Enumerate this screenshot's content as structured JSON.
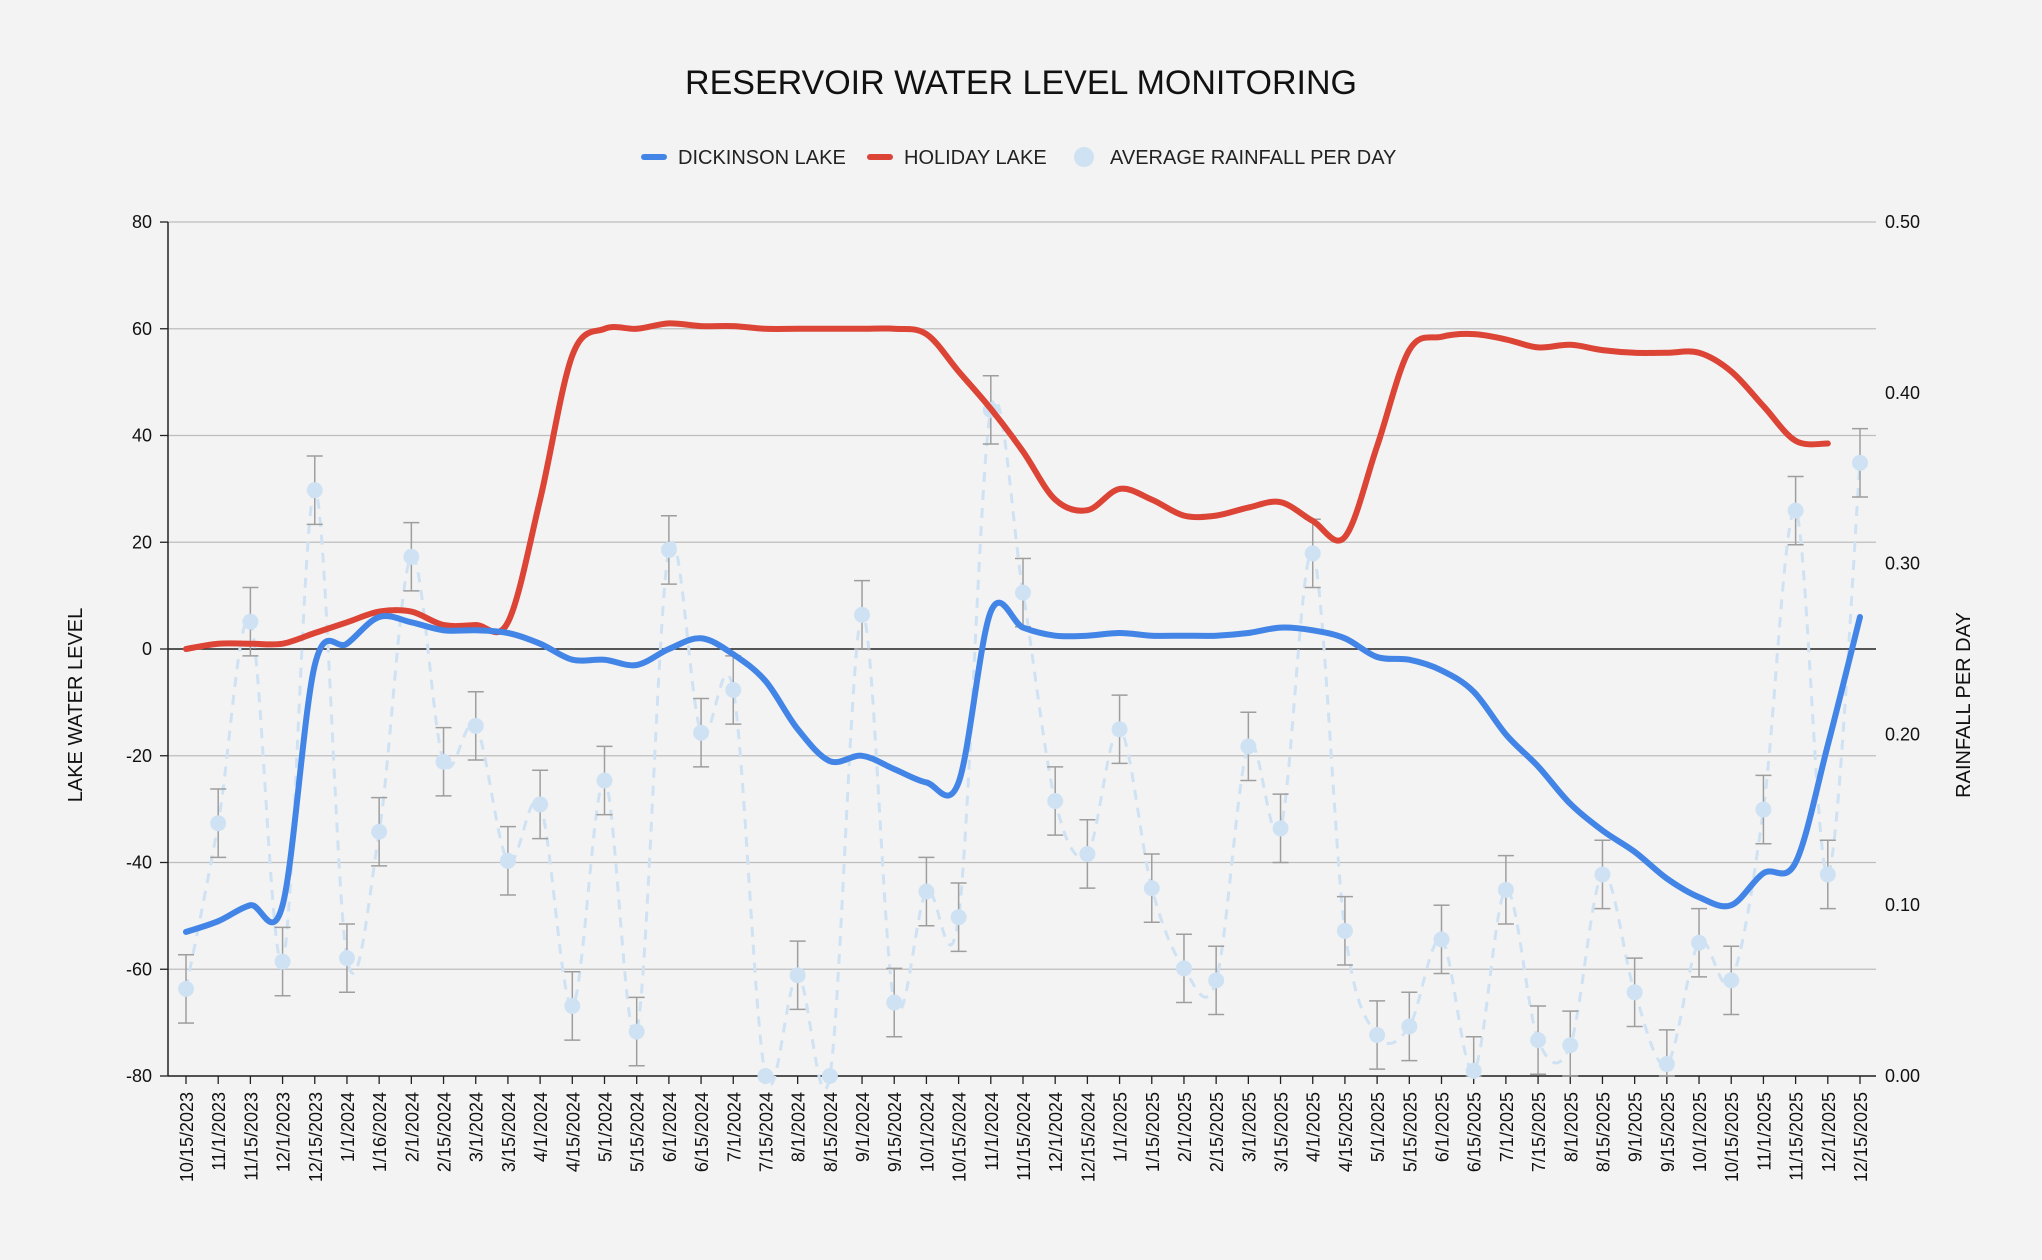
{
  "chart_data": {
    "type": "line",
    "title": "RESERVOIR WATER LEVEL MONITORING",
    "ylabel": "LAKE WATER LEVEL",
    "y2label": "RAINFALL PER DAY",
    "ylim": [
      -80,
      80
    ],
    "y_ticks": [
      80,
      60,
      40,
      20,
      0,
      -20,
      -40,
      -60,
      -80
    ],
    "y2lim": [
      0,
      0.5
    ],
    "y2_ticks": [
      "0.50",
      "0.40",
      "0.30",
      "0.20",
      "0.10",
      "0.00"
    ],
    "legend_position": "top-center",
    "grid": true,
    "categories": [
      "10/15/2023",
      "11/1/2023",
      "11/15/2023",
      "12/1/2023",
      "12/15/2023",
      "1/1/2024",
      "1/16/2024",
      "2/1/2024",
      "2/15/2024",
      "3/1/2024",
      "3/15/2024",
      "4/1/2024",
      "4/15/2024",
      "5/1/2024",
      "5/15/2024",
      "6/1/2024",
      "6/15/2024",
      "7/1/2024",
      "7/15/2024",
      "8/1/2024",
      "8/15/2024",
      "9/1/2024",
      "9/15/2024",
      "10/1/2024",
      "10/15/2024",
      "11/1/2024",
      "11/15/2024",
      "12/1/2024",
      "12/15/2024",
      "1/1/2025",
      "1/15/2025",
      "2/1/2025",
      "2/15/2025",
      "3/1/2025",
      "3/15/2025",
      "4/1/2025",
      "4/15/2025",
      "5/1/2025",
      "5/15/2025",
      "6/1/2025",
      "6/15/2025",
      "7/1/2025",
      "7/15/2025",
      "8/1/2025",
      "8/15/2025",
      "9/1/2025",
      "9/15/2025",
      "10/1/2025",
      "10/15/2025",
      "11/1/2025",
      "11/15/2025",
      "12/1/2025",
      "12/15/2025"
    ],
    "series": [
      {
        "name": "DICKINSON LAKE",
        "axis": "left",
        "color": "#4285e6",
        "values": [
          -53,
          -51,
          -48,
          -48,
          -3,
          1,
          6,
          5,
          3.5,
          3.5,
          3,
          1,
          -2,
          -2,
          -3,
          0,
          2,
          -1,
          -6,
          -15,
          -21,
          -20,
          -22.5,
          -25,
          -25,
          7,
          4,
          2.5,
          2.5,
          3,
          2.5,
          2.5,
          2.5,
          3,
          4,
          3.5,
          2,
          -1.5,
          -2,
          -4,
          -8,
          -16,
          -22,
          -29,
          -34,
          -38,
          -43,
          -46.5,
          -48,
          -42,
          -40,
          -18,
          6
        ]
      },
      {
        "name": "HOLIDAY LAKE",
        "axis": "right_none",
        "color": "#dc4436",
        "values": [
          0,
          1,
          1,
          1,
          3,
          5,
          7,
          7,
          4.5,
          4.5,
          5,
          28,
          55,
          60,
          60,
          61,
          60.5,
          60.5,
          60,
          60,
          60,
          60,
          60,
          59,
          52,
          45,
          37,
          28,
          26,
          30,
          28,
          25,
          25,
          26.5,
          27.5,
          24,
          21,
          38,
          56,
          58.5,
          59,
          58,
          56.5,
          57,
          56,
          55.5,
          55.5,
          55.5,
          52,
          45.5,
          39,
          38.5,
          null
        ]
      },
      {
        "name": "AVERAGE RAINFALL PER DAY",
        "axis": "right",
        "color": "#cfe2f3",
        "values": [
          0.051,
          0.148,
          0.266,
          0.067,
          0.343,
          0.069,
          0.143,
          0.304,
          0.184,
          0.205,
          0.126,
          0.159,
          0.041,
          0.173,
          0.026,
          0.308,
          0.201,
          0.226,
          0.0,
          0.059,
          0.0,
          0.27,
          0.043,
          0.108,
          0.093,
          0.39,
          0.283,
          0.161,
          0.13,
          0.203,
          0.11,
          0.063,
          0.056,
          0.193,
          0.145,
          0.306,
          0.085,
          0.024,
          0.029,
          0.08,
          0.003,
          0.109,
          0.021,
          0.018,
          0.118,
          0.049,
          0.007,
          0.078,
          0.056,
          0.156,
          0.331,
          0.118,
          0.359
        ],
        "error": 0.02
      }
    ]
  }
}
